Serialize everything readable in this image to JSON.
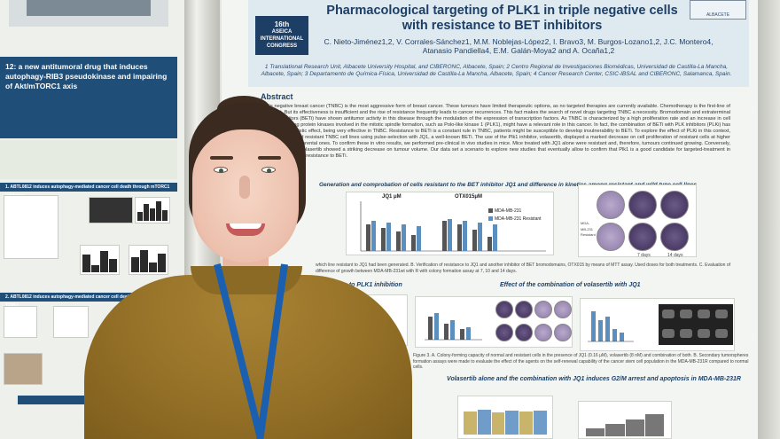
{
  "left_poster": {
    "header_title": "12: a new antitumoral drug that induces autophagy-RIB3 pseudokinase and impairing of Akt/mTORC1 axis",
    "section_1": "1. ABTL0812 induces autophagy-mediated cancer cell death through mTORC1 inhibition",
    "section_2": "2. ABTL0812 induces autophagy-mediated cancer cell death by upregulating TRIB3"
  },
  "main_poster": {
    "congress_number": "16th",
    "congress_name": "ASEICA INTERNATIONAL CONGRESS",
    "logo_text": "ALBACETE",
    "title": "Pharmacological targeting of PLK1 in triple negative cells with resistance to BET inhibitors",
    "authors": "C. Nieto-Jiménez1,2, V. Corrales-Sánchez1, M.M. Noblejas-López2, I. Bravo3, M. Burgos-Lozano1,2, J.C. Montero4, Atanasio Pandiella4, E.M. Galán-Moya2 and A. Ocaña1,2",
    "affiliations": "1 Translational Research Unit, Albacete University Hospital, and CIBERONC, Albacete, Spain; 2 Centro Regional de Investigaciones Biomédicas, Universidad de Castilla-La Mancha, Albacete, Spain; 3 Departamento de Química-Física, Universidad de Castilla-La Mancha, Albacete, Spain; 4 Cancer Research Center, CSIC-IBSAL and CIBERONC, Salamanca, Spain.",
    "abstract_heading": "Abstract",
    "abstract_text": "Triple negative breast cancer (TNBC) is the most aggressive form of breast cancer. These tumours have limited therapeutic options, as no targeted therapies are currently available. Chemotherapy is the first-line of treatment. But its effectiveness is insufficient and the rise of resistance frequently leads to cancer recurrences. This fact makes the search of novel drugs targeting TNBC a necessity. Bromodomain and extraterminal domain inhibitors (BETi) have shown antitumor activity in this disease through the modulation of the expression of transcription factors. As TNBC is characterized by a high proliferation rate and an increase in cell division, targeting protein kinases involved in the mitotic spindle formation, such as Polo-like kinase 1 (PLK1), might have a relevant role in this cancer. In fact, the combination of BETi with PLK inhibitors (PLKi) has showed a synergistic effect, being very effective in TNBC. Resistance to BETi is a constant rule in TNBC, patients might be susceptible to develop invulnerability to BETi. To explore the effect of PLKi in this context, we have developed resistant TNBC cell lines using pulse-selection with JQ1, a well-known BETi. The use of the Plk1 inhibitor, volasertib, displayed a marked decrease on cell proliferation of resistant cells at higher levels than in the parental ones. To confirm these in vitro results, we performed pre-clinical in vivo studies in mice. Mice treated with JQ1 alone were resistant and, therefore, tumours continued growing. Conversely, mice treated with volasertib showed a striking decrease on tumour volume. Our data set a scenario to explore new studies that eventually allow to confirm that Plk1 is a good candidate for targeted-treatment in TNBC with acquired resistance to BETi.",
    "section_1": "Generation and comprobation of cells resistant to the BET inhibitor JQ1 and difference in kinetics among resistant and wild type cell lines",
    "chart_b_title_1": "JQ1 μM",
    "chart_b_title_2": "OTX015μM",
    "legend_1": "MDA-MB-231",
    "legend_2": "MDA-MB-231 Resistant",
    "plate_row_label": "MDA-MB-231 Resistant",
    "plate_days_1": "7 days",
    "plate_days_2": "14 days",
    "fig1_caption": "which line resistant to JQ1 had been generated. B. Verification of resistance to JQ1 and another inhibitor of BET bromodomains, OTX015 by means of MTT assay. Used doses for both treatments. C. Evaluation of difference of growth between MDA-MB-231wt with R with colony formation assay at 7, 10 and 14 days.",
    "section_2a": "sitive to PLK1 inhibition",
    "section_2b": "Effect of the combination of volasertib with JQ1",
    "fig3_caption": "Figure 3. A. Colony-forming capacity of normal and resistant cells in the presence of JQ1 (0.16 μM), volasertib (8 nM) and combination of both. B. Secondary tumorspheres formation assays were made to evaluate the effect of the agents on the self-renewal capability of the cancer stem cell population in the MDA-MB-231R compared to normal cells.",
    "section_3": "Volasertib alone and the combination with JQ1 induces G2/M arrest and apoptosis in MDA-MB-231R"
  },
  "colors": {
    "poster_blue": "#1d3f66",
    "bar_dark": "#555555",
    "bar_blue": "#5a8fc0",
    "sweater": "#947027",
    "lanyard": "#1b5fb0"
  }
}
